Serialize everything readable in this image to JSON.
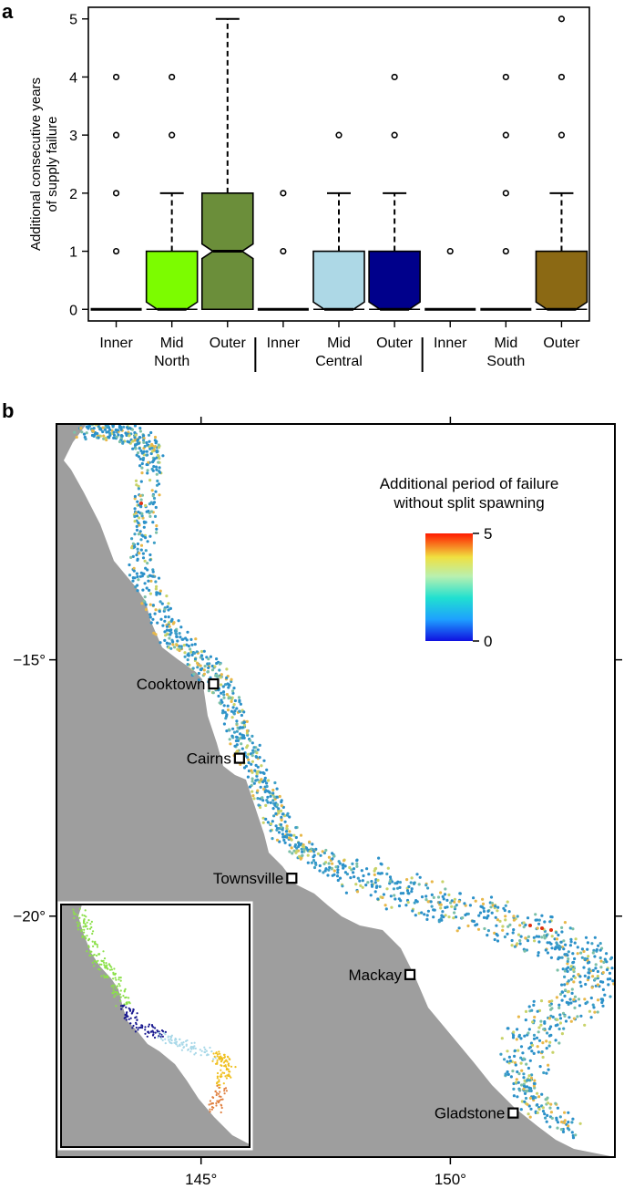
{
  "panels": {
    "a": "a",
    "b": "b"
  },
  "chart_data": [
    {
      "type": "box",
      "ylabel_lines": [
        "Additional consecutive years",
        "of supply failure"
      ],
      "yticks": [
        0,
        1,
        2,
        3,
        4,
        5
      ],
      "ylim": [
        -0.2,
        5.2
      ],
      "boxes": [
        {
          "label": "Inner",
          "region": "North",
          "q1": 0,
          "median": 0,
          "q3": 0,
          "whisker_low": 0,
          "whisker_high": 0,
          "outliers": [
            1,
            2,
            3,
            4
          ],
          "color": ""
        },
        {
          "label": "Mid",
          "region": "North",
          "q1": 0,
          "median": 0,
          "q3": 1,
          "whisker_low": 0,
          "whisker_high": 2,
          "outliers": [
            3,
            4
          ],
          "color": "#7CFC00"
        },
        {
          "label": "Outer",
          "region": "North",
          "q1": 0,
          "median": 1,
          "q3": 2,
          "whisker_low": 0,
          "whisker_high": 5,
          "outliers": [],
          "color": "#6B8E3A"
        },
        {
          "label": "Inner",
          "region": "Central",
          "q1": 0,
          "median": 0,
          "q3": 0,
          "whisker_low": 0,
          "whisker_high": 0,
          "outliers": [
            1,
            2
          ],
          "color": ""
        },
        {
          "label": "Mid",
          "region": "Central",
          "q1": 0,
          "median": 0,
          "q3": 1,
          "whisker_low": 0,
          "whisker_high": 2,
          "outliers": [
            3
          ],
          "color": "#ADD8E6"
        },
        {
          "label": "Outer",
          "region": "Central",
          "q1": 0,
          "median": 0,
          "q3": 1,
          "whisker_low": 0,
          "whisker_high": 2,
          "outliers": [
            3,
            4
          ],
          "color": "#00008B"
        },
        {
          "label": "Inner",
          "region": "South",
          "q1": 0,
          "median": 0,
          "q3": 0,
          "whisker_low": 0,
          "whisker_high": 0,
          "outliers": [
            1
          ],
          "color": ""
        },
        {
          "label": "Mid",
          "region": "South",
          "q1": 0,
          "median": 0,
          "q3": 0,
          "whisker_low": 0,
          "whisker_high": 0,
          "outliers": [
            1,
            2,
            3,
            4
          ],
          "color": ""
        },
        {
          "label": "Outer",
          "region": "South",
          "q1": 0,
          "median": 0,
          "q3": 1,
          "whisker_low": 0,
          "whisker_high": 2,
          "outliers": [
            3,
            4,
            5
          ],
          "color": "#8B6914"
        }
      ],
      "regions": [
        "North",
        "Central",
        "South"
      ]
    },
    {
      "type": "map",
      "legend_title_lines": [
        "Additional period of failure",
        "without split spawning"
      ],
      "colorbar": {
        "min": 0,
        "max": 5,
        "min_label": "0",
        "max_label": "5"
      },
      "x_ticks": [
        {
          "value": 145,
          "label": "145°"
        },
        {
          "value": 150,
          "label": "150°"
        }
      ],
      "y_ticks": [
        {
          "value": -15,
          "label": "−15°"
        },
        {
          "value": -20,
          "label": "−20°"
        }
      ],
      "xlim": [
        142.1,
        153.3
      ],
      "ylim": [
        -24.7,
        -10.4
      ],
      "towns": [
        {
          "name": "Cooktown",
          "lon": 145.25,
          "lat": -15.47
        },
        {
          "name": "Cairns",
          "lon": 145.77,
          "lat": -16.92
        },
        {
          "name": "Townsville",
          "lon": 146.82,
          "lat": -19.26
        },
        {
          "name": "Mackay",
          "lon": 149.19,
          "lat": -21.14
        },
        {
          "name": "Gladstone",
          "lon": 151.26,
          "lat": -23.84
        }
      ]
    }
  ]
}
